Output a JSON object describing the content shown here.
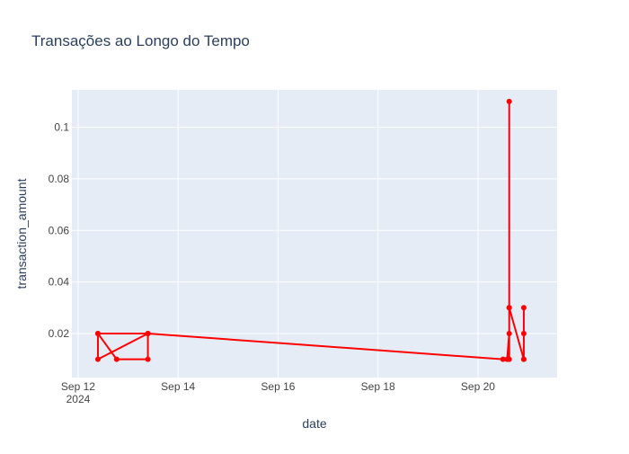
{
  "chart_data": {
    "type": "line",
    "title": "Transações ao Longo do Tempo",
    "xlabel": "date",
    "ylabel": "transaction_amount",
    "x_ticks": [
      {
        "date": "2024-09-12",
        "label": "Sep 12",
        "sublabel": "2024"
      },
      {
        "date": "2024-09-14",
        "label": "Sep 14",
        "sublabel": ""
      },
      {
        "date": "2024-09-16",
        "label": "Sep 16",
        "sublabel": ""
      },
      {
        "date": "2024-09-18",
        "label": "Sep 18",
        "sublabel": ""
      },
      {
        "date": "2024-09-20",
        "label": "Sep 20",
        "sublabel": ""
      }
    ],
    "y_ticks": [
      {
        "value": 0.02,
        "label": "0.02"
      },
      {
        "value": 0.04,
        "label": "0.04"
      },
      {
        "value": 0.06,
        "label": "0.06"
      },
      {
        "value": 0.08,
        "label": "0.08"
      },
      {
        "value": 0.1,
        "label": "0.1"
      }
    ],
    "xlim": [
      "2024-09-11T21:00",
      "2024-09-21T14:00"
    ],
    "ylim": [
      0.0029,
      0.1145
    ],
    "grid": true,
    "colors": {
      "line": "#ff0000",
      "plot_bg": "#e5ecf6",
      "grid": "#ffffff",
      "text": "#2a3f5f",
      "tick_text": "#444444"
    },
    "series": [
      {
        "points": [
          {
            "x": "2024-09-12T09:30",
            "y": 0.02
          },
          {
            "x": "2024-09-12T09:30",
            "y": 0.01
          },
          {
            "x": "2024-09-13T09:30",
            "y": 0.02
          },
          {
            "x": "2024-09-13T09:30",
            "y": 0.01
          },
          {
            "x": "2024-09-12T18:30",
            "y": 0.01
          },
          {
            "x": "2024-09-12T09:30",
            "y": 0.02
          },
          {
            "x": "2024-09-13T09:30",
            "y": 0.02
          },
          {
            "x": "2024-09-20T12:00",
            "y": 0.01
          },
          {
            "x": "2024-09-20T14:00",
            "y": 0.01
          },
          {
            "x": "2024-09-20T15:00",
            "y": 0.02
          },
          {
            "x": "2024-09-20T15:00",
            "y": 0.11
          },
          {
            "x": "2024-09-20T15:00",
            "y": 0.03
          },
          {
            "x": "2024-09-20T15:00",
            "y": 0.01
          },
          {
            "x": "2024-09-20T15:00",
            "y": 0.03
          },
          {
            "x": "2024-09-20T22:00",
            "y": 0.01
          },
          {
            "x": "2024-09-20T22:00",
            "y": 0.03
          },
          {
            "x": "2024-09-20T22:00",
            "y": 0.02
          },
          {
            "x": "2024-09-20T22:00",
            "y": 0.01
          }
        ]
      }
    ]
  }
}
